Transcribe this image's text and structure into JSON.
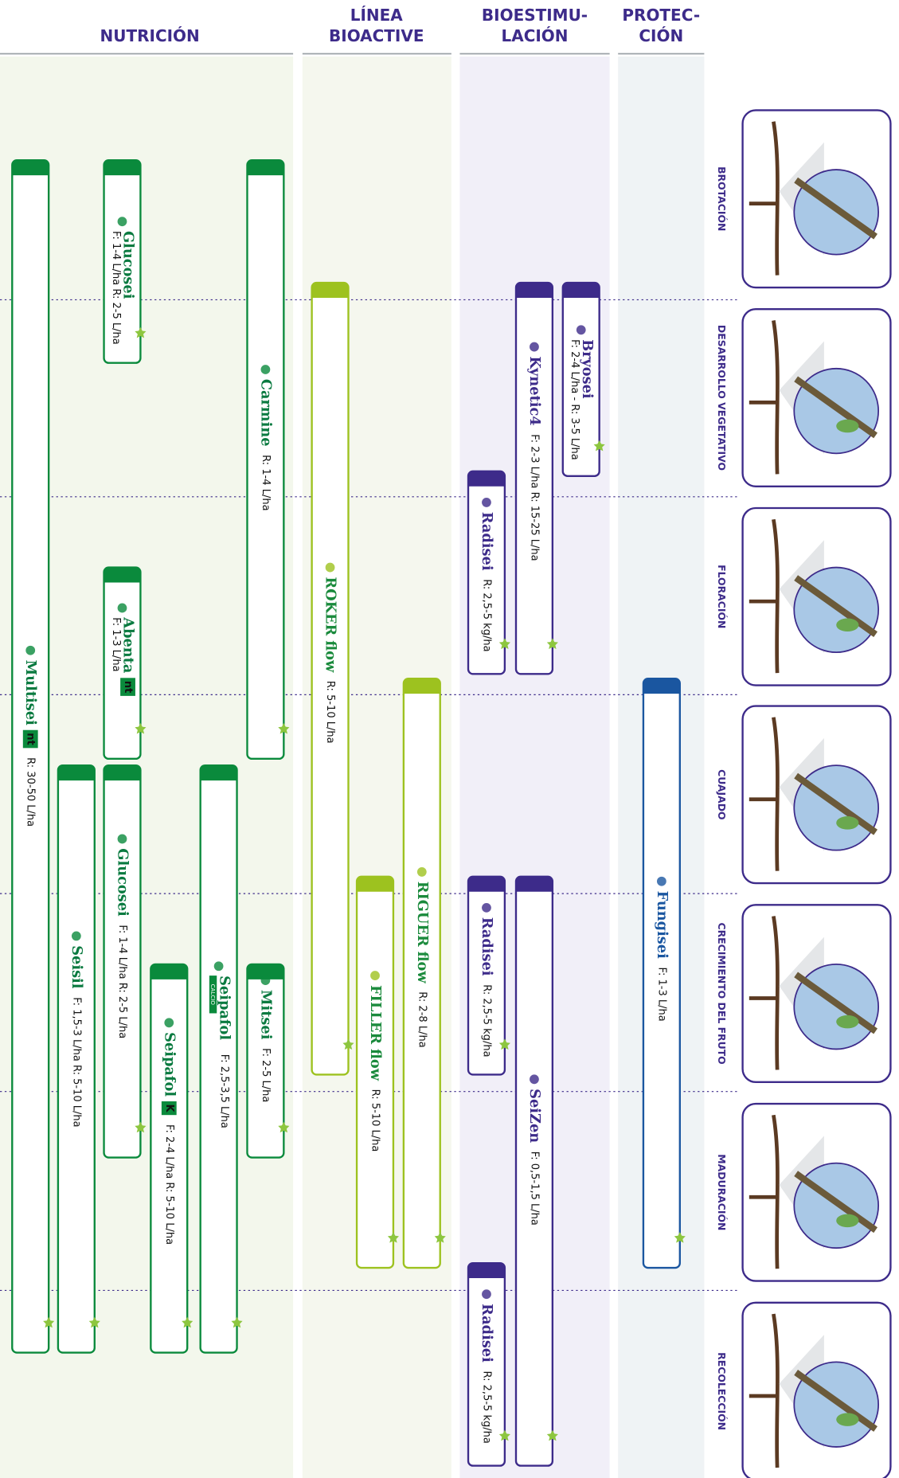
{
  "columns": [
    {
      "lines": [
        "NUTRICIÓN"
      ]
    },
    {
      "lines": [
        "LÍNEA",
        "BIOACTIVE"
      ]
    },
    {
      "lines": [
        "BIOESTIMU-",
        "LACIÓN"
      ]
    },
    {
      "lines": [
        "PROTEC-",
        "CIÓN"
      ]
    }
  ],
  "stages": [
    "BROTACIÓN",
    "DESARROLLO VEGETATIVO",
    "FLORACIÓN",
    "CUAJADO",
    "CRECIMIENTO DEL FRUTO",
    "MADURACIÓN",
    "RECOLECCIÓN"
  ],
  "products": [
    {
      "name": "Multisei",
      "badge": "nt",
      "dose": "R: 30-50 L/ha"
    },
    {
      "name": "Glucosei",
      "dose": "F: 1-4 L/ha R: 2-5 L/ha"
    },
    {
      "name": "Carmine",
      "dose": "R: 1-4 L/ha"
    },
    {
      "name": "Abenta",
      "badge": "nt",
      "dose": "F: 1-3 L/ha"
    },
    {
      "name": "Seisil",
      "dose": "F: 1,5-3 L/ha R: 5-10 L/ha"
    },
    {
      "name": "Glucosei",
      "dose": "F: 1-4 L/ha R: 2-5 L/ha"
    },
    {
      "name": "Seipafol",
      "badge": "K",
      "dose": "F: 2-4 L/ha R: 5-10 L/ha"
    },
    {
      "name": "Seipafol",
      "tag": "CALCIO",
      "dose": "F: 2,5-3,5 L/ha"
    },
    {
      "name": "Mitsei",
      "dose": "F: 2-5 L/ha"
    },
    {
      "name": "ROKER",
      "suffix": "flow",
      "dose": "R: 5-10 L/ha"
    },
    {
      "name": "RIGUER",
      "suffix": "flow",
      "dose": "R: 2-8 L/ha"
    },
    {
      "name": "FILLER",
      "suffix": "flow",
      "dose": "R: 5-10 L/ha"
    },
    {
      "name": "Bryosei",
      "dose": "F: 2-4 L/ha - R: 3-5 L/ha"
    },
    {
      "name": "Kynetic4",
      "dose": "F: 2-3 L/ha R: 15-25 L/ha"
    },
    {
      "name": "Radisei",
      "dose": "R: 2,5-5 kg/ha"
    },
    {
      "name": "Radisei",
      "dose": "R: 2,5-5 kg/ha"
    },
    {
      "name": "SeiZen",
      "dose": "F: 0,5-1,5 L/ha"
    },
    {
      "name": "Radisei",
      "dose": "R: 2,5-5 kg/ha"
    },
    {
      "name": "Fungisei",
      "dose": "F: 1-3 L/ha"
    }
  ]
}
